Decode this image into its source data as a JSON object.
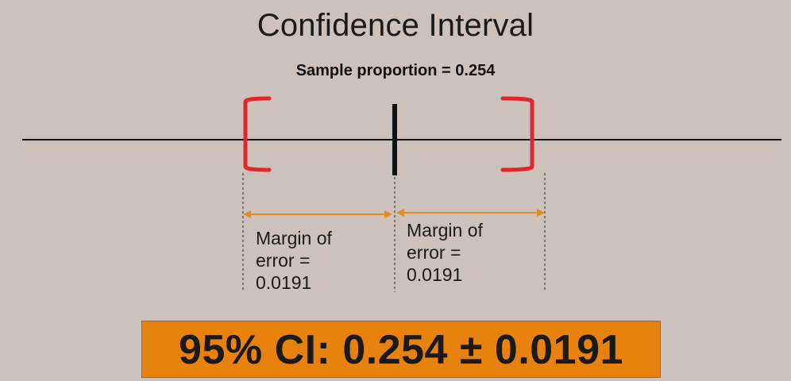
{
  "slide": {
    "title": "Confidence Interval",
    "sample_proportion_label": "Sample proportion = 0.254",
    "margin_left": {
      "line1": "Margin of",
      "line2": "error =",
      "line3": "0.0191"
    },
    "margin_right": {
      "line1": "Margin of",
      "line2": "error =",
      "line3": "0.0191"
    },
    "ci_result": "95% CI: 0.254 ± 0.0191"
  },
  "colors": {
    "background": "#cdc1bb",
    "bracket": "#e0262a",
    "arrow": "#e38a25",
    "ci_box": "#e8820f",
    "line": "#111111"
  }
}
